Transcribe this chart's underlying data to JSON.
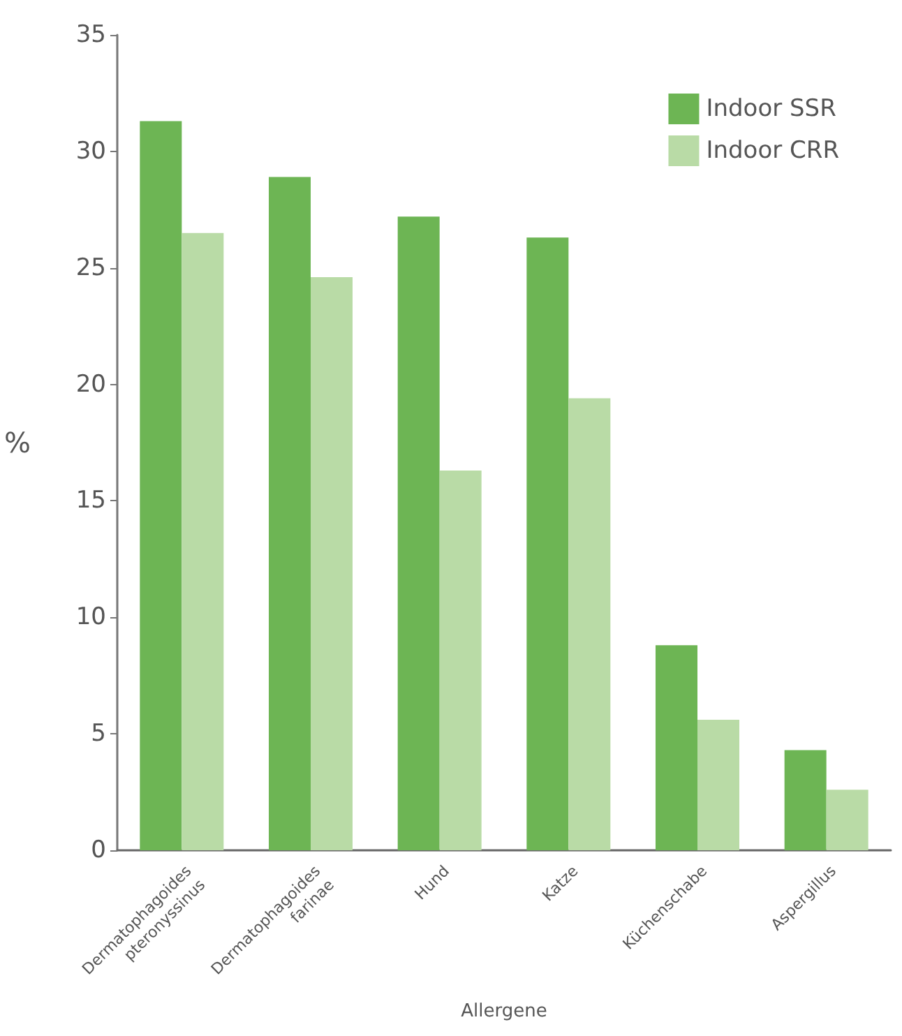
{
  "chart_data": {
    "type": "bar",
    "xlabel": "Allergene",
    "ylabel": "%",
    "categories": [
      "Dermatophagoides\npteronyssinus",
      "Dermatophagoides\nfarinae",
      "Hund",
      "Katze",
      "Küchenschabe",
      "Aspergillus"
    ],
    "series": [
      {
        "name": "Indoor SSR",
        "color": "#6db554",
        "values": [
          31.3,
          28.9,
          27.2,
          26.3,
          8.8,
          4.3
        ]
      },
      {
        "name": "Indoor CRR",
        "color": "#b9dba6",
        "values": [
          26.5,
          24.6,
          16.3,
          19.4,
          5.6,
          2.6
        ]
      }
    ],
    "ylim": [
      0,
      35
    ],
    "yticks": [
      0,
      5,
      10,
      15,
      20,
      25,
      30,
      35
    ],
    "grid": false,
    "legend": "top right"
  }
}
